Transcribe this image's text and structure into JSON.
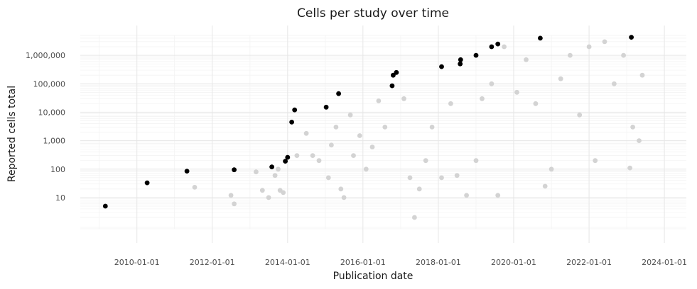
{
  "chart_data": {
    "type": "scatter",
    "title": "Cells per study over time",
    "xlabel": "Publication date",
    "ylabel": "Reported cells total",
    "x_scale": "date",
    "y_scale": "log10",
    "xlim": [
      "2008-07-01",
      "2024-08-01"
    ],
    "ylim": [
      0.8,
      5000000
    ],
    "x_ticks": [
      "2010-01-01",
      "2012-01-01",
      "2014-01-01",
      "2016-01-01",
      "2018-01-01",
      "2020-01-01",
      "2022-01-01",
      "2024-01-01"
    ],
    "y_ticks": [
      10,
      100,
      1000,
      10000,
      100000,
      1000000
    ],
    "y_tick_labels": [
      "10",
      "100",
      "1,000",
      "10,000",
      "100,000",
      "1,000,000"
    ],
    "grid": true,
    "series": [
      {
        "color": "#000000",
        "points": [
          [
            "2009-03-01",
            5
          ],
          [
            "2010-04-10",
            33
          ],
          [
            "2011-05-01",
            85
          ],
          [
            "2012-08-01",
            95
          ],
          [
            "2013-08-01",
            120
          ],
          [
            "2013-12-10",
            190
          ],
          [
            "2014-01-01",
            260
          ],
          [
            "2014-02-10",
            4500
          ],
          [
            "2014-03-10",
            12000
          ],
          [
            "2015-01-10",
            15000
          ],
          [
            "2015-05-10",
            45000
          ],
          [
            "2016-10-10",
            85000
          ],
          [
            "2016-10-20",
            200000
          ],
          [
            "2016-11-20",
            250000
          ],
          [
            "2018-02-01",
            400000
          ],
          [
            "2018-08-01",
            500000
          ],
          [
            "2018-08-05",
            700000
          ],
          [
            "2019-01-01",
            1000000
          ],
          [
            "2019-06-01",
            2000000
          ],
          [
            "2019-08-01",
            2500000
          ],
          [
            "2020-09-15",
            4000000
          ],
          [
            "2023-02-15",
            4300000
          ]
        ]
      },
      {
        "color": "#d3d3d3",
        "points": [
          [
            "2011-07-15",
            23
          ],
          [
            "2012-07-01",
            12
          ],
          [
            "2012-08-01",
            6
          ],
          [
            "2013-03-01",
            80
          ],
          [
            "2013-05-01",
            18
          ],
          [
            "2013-07-01",
            10
          ],
          [
            "2013-09-01",
            60
          ],
          [
            "2013-10-01",
            100
          ],
          [
            "2013-10-20",
            18
          ],
          [
            "2013-11-20",
            15
          ],
          [
            "2014-04-01",
            300
          ],
          [
            "2014-07-01",
            1800
          ],
          [
            "2014-09-01",
            300
          ],
          [
            "2014-11-01",
            200
          ],
          [
            "2015-02-01",
            50
          ],
          [
            "2015-03-01",
            700
          ],
          [
            "2015-04-15",
            3000
          ],
          [
            "2015-06-01",
            20
          ],
          [
            "2015-07-01",
            10
          ],
          [
            "2015-09-01",
            8000
          ],
          [
            "2015-10-01",
            300
          ],
          [
            "2015-12-01",
            1500
          ],
          [
            "2016-02-01",
            100
          ],
          [
            "2016-04-01",
            600
          ],
          [
            "2016-06-01",
            25000
          ],
          [
            "2016-08-01",
            3000
          ],
          [
            "2017-02-01",
            30000
          ],
          [
            "2017-04-01",
            50
          ],
          [
            "2017-05-15",
            2
          ],
          [
            "2017-07-01",
            20
          ],
          [
            "2017-09-01",
            200
          ],
          [
            "2017-11-01",
            3000
          ],
          [
            "2018-02-01",
            50
          ],
          [
            "2018-05-01",
            20000
          ],
          [
            "2018-07-01",
            60
          ],
          [
            "2018-10-01",
            12
          ],
          [
            "2019-01-01",
            200
          ],
          [
            "2019-03-01",
            30000
          ],
          [
            "2019-06-01",
            100000
          ],
          [
            "2019-08-01",
            12
          ],
          [
            "2019-10-01",
            2000000
          ],
          [
            "2020-02-01",
            50000
          ],
          [
            "2020-05-01",
            700000
          ],
          [
            "2020-08-01",
            20000
          ],
          [
            "2020-11-01",
            25
          ],
          [
            "2021-01-01",
            100
          ],
          [
            "2021-04-01",
            150000
          ],
          [
            "2021-07-01",
            1000000
          ],
          [
            "2021-10-01",
            8000
          ],
          [
            "2022-01-01",
            2000000
          ],
          [
            "2022-03-01",
            200
          ],
          [
            "2022-06-01",
            3000000
          ],
          [
            "2022-09-01",
            100000
          ],
          [
            "2022-12-01",
            1000000
          ],
          [
            "2023-02-01",
            110
          ],
          [
            "2023-03-01",
            3000
          ],
          [
            "2023-05-01",
            1000
          ],
          [
            "2023-06-01",
            200000
          ]
        ]
      }
    ]
  }
}
